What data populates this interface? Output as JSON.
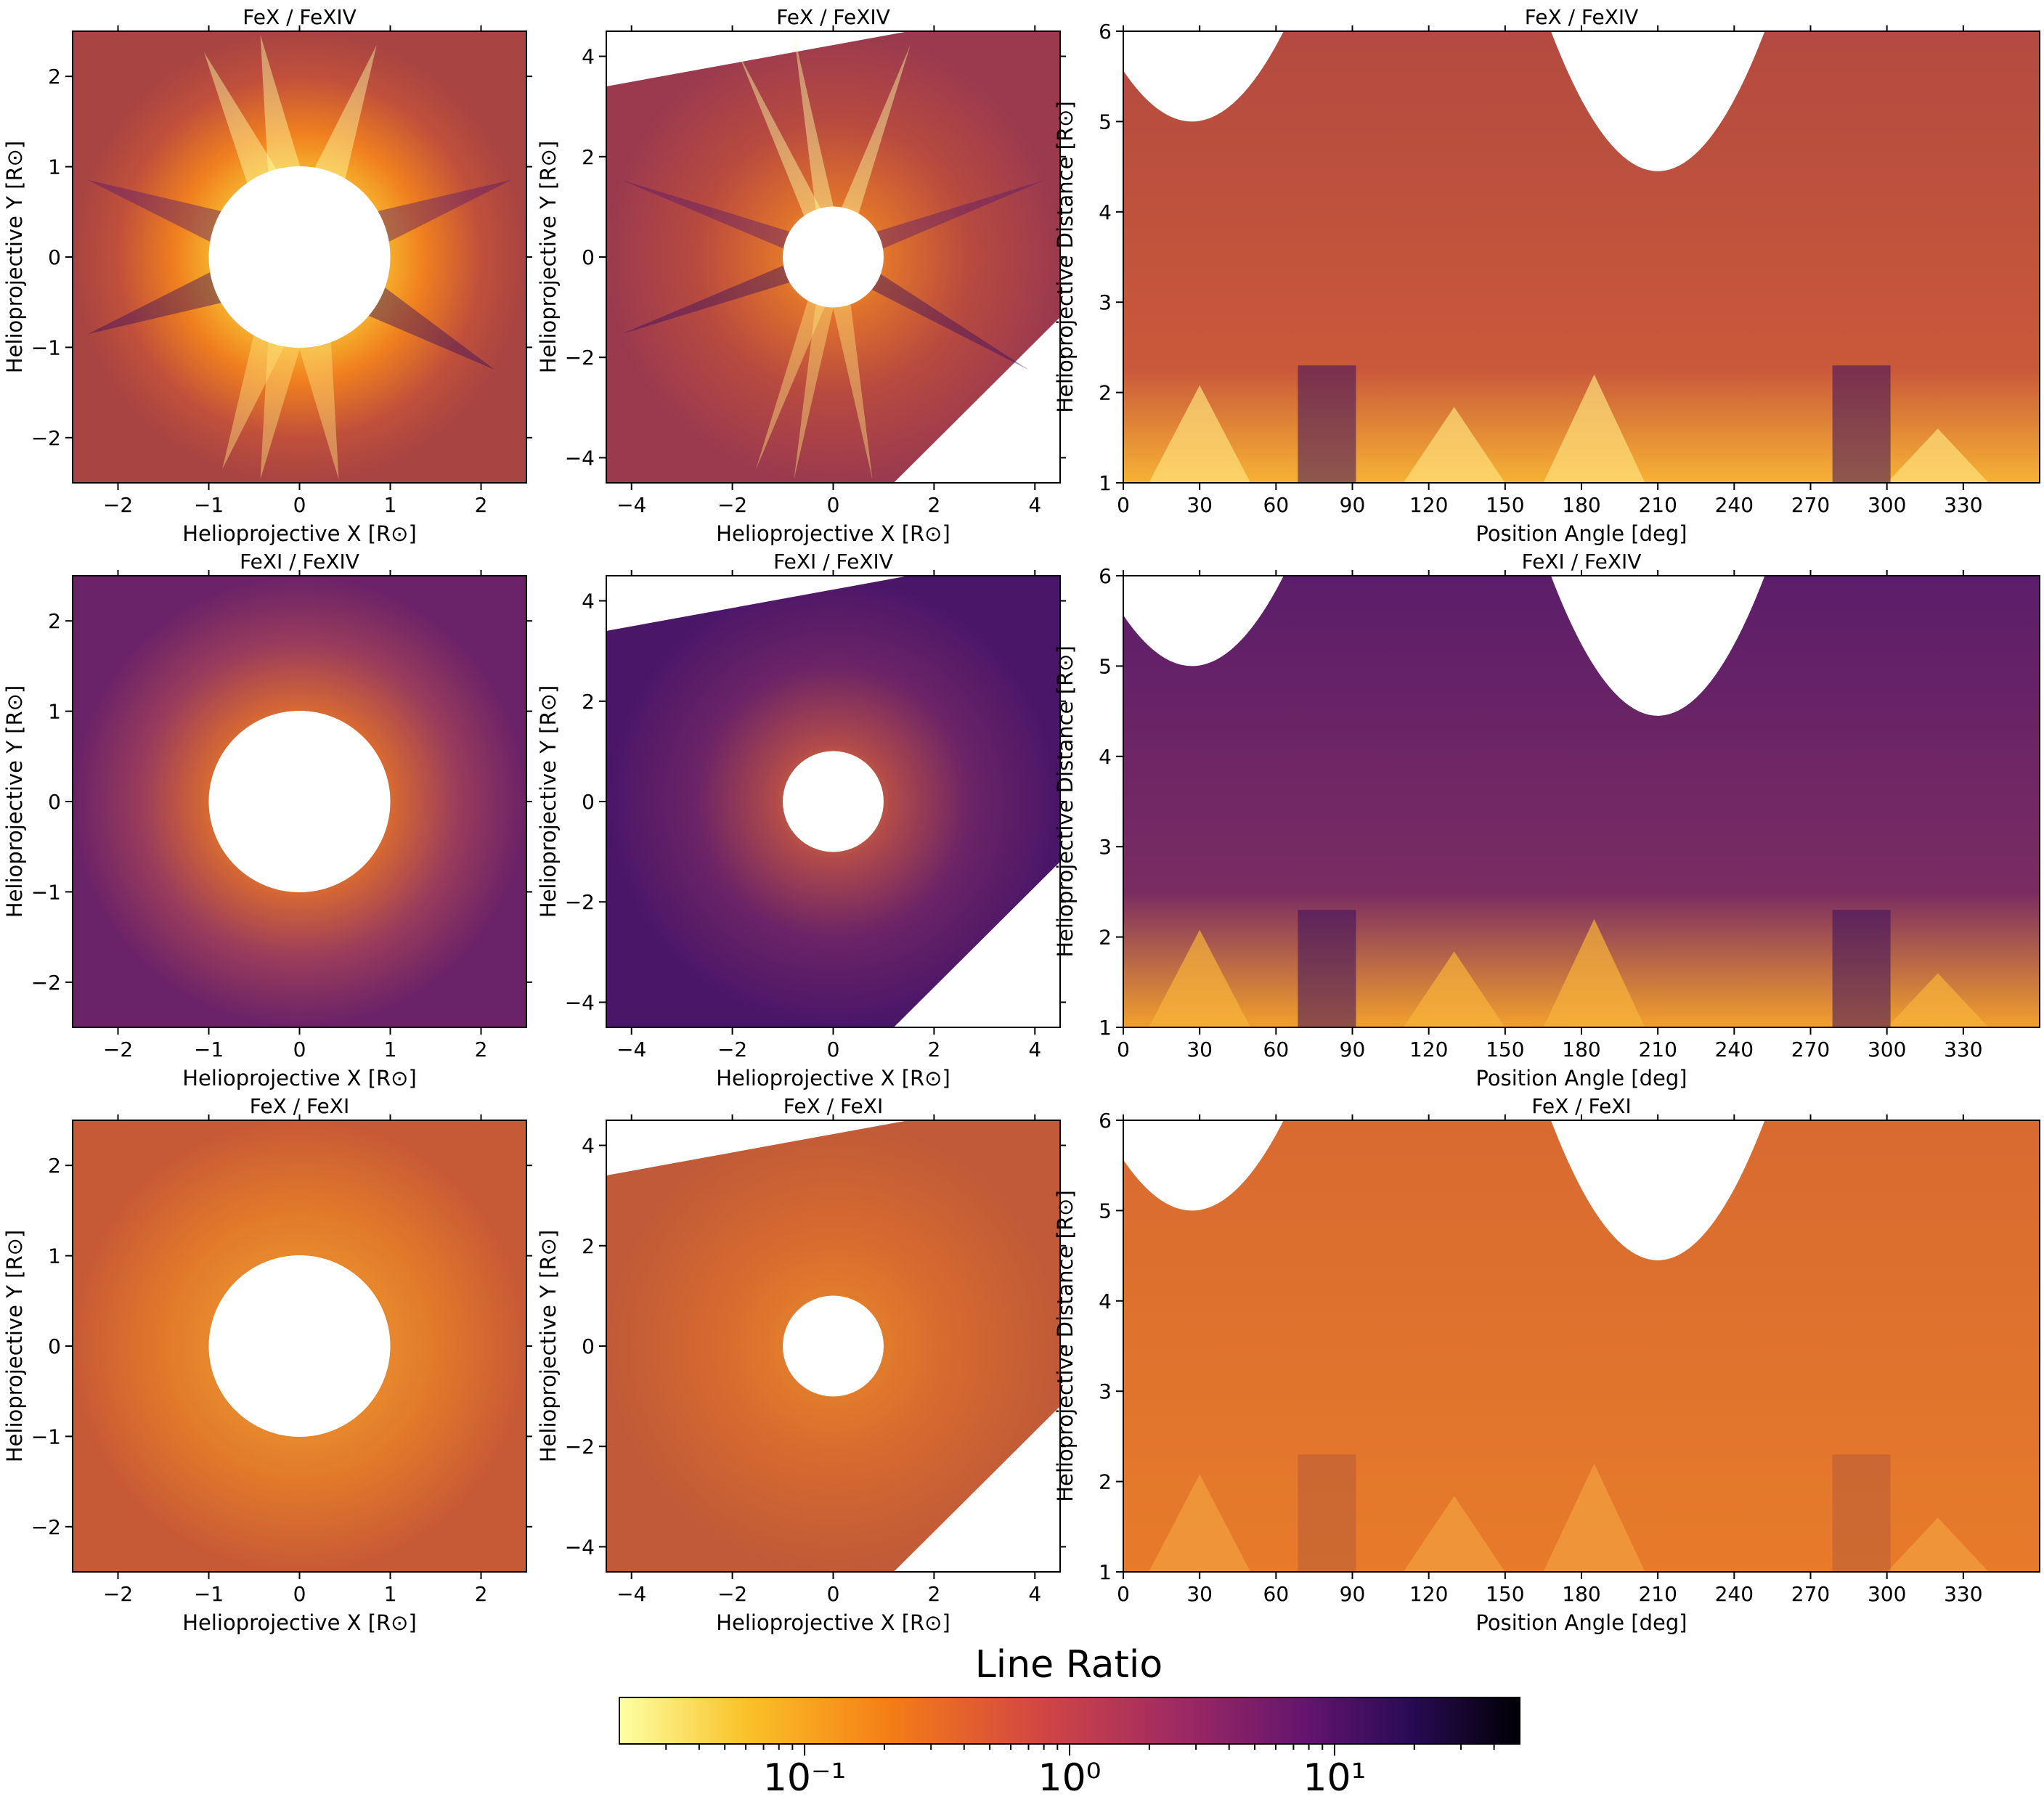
{
  "figure": {
    "colormap": [
      "#fcffa4",
      "#fac228",
      "#f57d15",
      "#d44842",
      "#9f2a63",
      "#65156e",
      "#280b53",
      "#000004"
    ],
    "hole_color": "#ffffff"
  },
  "colorbar": {
    "label": "Line Ratio",
    "scale": "log",
    "range": [
      0.02,
      50
    ],
    "tick_labels": [
      "10⁻¹",
      "10⁰",
      "10¹"
    ],
    "tick_values": [
      0.1,
      1,
      10
    ]
  },
  "chart_data": [
    {
      "type": "heatmap",
      "title": "FeX / FeXIV",
      "xlabel": "Helioprojective X [R⊙]",
      "ylabel": "Helioprojective Y [R⊙]",
      "xlim": [
        -2.5,
        2.5
      ],
      "ylim": [
        -2.5,
        2.5
      ],
      "xticks": [
        -2,
        -1,
        0,
        1,
        2
      ],
      "yticks": [
        -2,
        -1,
        0,
        1,
        2
      ],
      "tick_labels_x": [
        "−2",
        "−1",
        "0",
        "1",
        "2"
      ],
      "tick_labels_y": [
        "−2",
        "−1",
        "0",
        "1",
        "2"
      ],
      "occulter_radius": 1.0,
      "bright_regions": [
        "north-east streamer",
        "south streamer"
      ],
      "dominant_ratio": "0.1 to 1"
    },
    {
      "type": "heatmap",
      "title": "FeX / FeXIV",
      "xlabel": "Helioprojective X [R⊙]",
      "ylabel": "Helioprojective Y [R⊙]",
      "xlim": [
        -4.5,
        4.5
      ],
      "ylim": [
        -4.5,
        4.5
      ],
      "xticks": [
        -4,
        -2,
        0,
        2,
        4
      ],
      "yticks": [
        -4,
        -2,
        0,
        2,
        4
      ],
      "tick_labels_x": [
        "−4",
        "−2",
        "0",
        "2",
        "4"
      ],
      "tick_labels_y": [
        "−4",
        "−2",
        "0",
        "2",
        "4"
      ],
      "occulter_radius": 1.0,
      "dominant_ratio": "about 1"
    },
    {
      "type": "heatmap",
      "title": "FeX / FeXIV",
      "xlabel": "Position Angle [deg]",
      "ylabel": "Helioprojective Distance [R⊙]",
      "xlim": [
        0,
        360
      ],
      "ylim": [
        1,
        6
      ],
      "xticks": [
        0,
        30,
        60,
        90,
        120,
        150,
        180,
        210,
        240,
        270,
        300,
        330
      ],
      "yticks": [
        1,
        2,
        3,
        4,
        5,
        6
      ],
      "tick_labels_x": [
        "0",
        "30",
        "60",
        "90",
        "120",
        "150",
        "180",
        "210",
        "240",
        "270",
        "300",
        "330"
      ],
      "tick_labels_y": [
        "1",
        "2",
        "3",
        "4",
        "5",
        "6"
      ],
      "missing_arcs": [
        {
          "center_angle": 27,
          "min_distance": 5.0
        },
        {
          "center_angle": 210,
          "min_distance": 4.45
        }
      ]
    },
    {
      "type": "heatmap",
      "title": "FeXI / FeXIV",
      "xlabel": "Helioprojective X [R⊙]",
      "ylabel": "Helioprojective Y [R⊙]",
      "xlim": [
        -2.5,
        2.5
      ],
      "ylim": [
        -2.5,
        2.5
      ],
      "xticks": [
        -2,
        -1,
        0,
        1,
        2
      ],
      "yticks": [
        -2,
        -1,
        0,
        1,
        2
      ],
      "tick_labels_x": [
        "−2",
        "−1",
        "0",
        "1",
        "2"
      ],
      "tick_labels_y": [
        "−2",
        "−1",
        "0",
        "1",
        "2"
      ],
      "occulter_radius": 1.0
    },
    {
      "type": "heatmap",
      "title": "FeXI / FeXIV",
      "xlabel": "Helioprojective X [R⊙]",
      "ylabel": "Helioprojective Y [R⊙]",
      "xlim": [
        -4.5,
        4.5
      ],
      "ylim": [
        -4.5,
        4.5
      ],
      "xticks": [
        -4,
        -2,
        0,
        2,
        4
      ],
      "yticks": [
        -4,
        -2,
        0,
        2,
        4
      ],
      "tick_labels_x": [
        "−4",
        "−2",
        "0",
        "2",
        "4"
      ],
      "tick_labels_y": [
        "−4",
        "−2",
        "0",
        "2",
        "4"
      ],
      "occulter_radius": 1.0
    },
    {
      "type": "heatmap",
      "title": "FeXI / FeXIV",
      "xlabel": "Position Angle [deg]",
      "ylabel": "Helioprojective Distance [R⊙]",
      "xlim": [
        0,
        360
      ],
      "ylim": [
        1,
        6
      ],
      "xticks": [
        0,
        30,
        60,
        90,
        120,
        150,
        180,
        210,
        240,
        270,
        300,
        330
      ],
      "yticks": [
        1,
        2,
        3,
        4,
        5,
        6
      ],
      "tick_labels_x": [
        "0",
        "30",
        "60",
        "90",
        "120",
        "150",
        "180",
        "210",
        "240",
        "270",
        "300",
        "330"
      ],
      "tick_labels_y": [
        "1",
        "2",
        "3",
        "4",
        "5",
        "6"
      ],
      "missing_arcs": [
        {
          "center_angle": 27,
          "min_distance": 5.0
        },
        {
          "center_angle": 210,
          "min_distance": 4.45
        }
      ]
    },
    {
      "type": "heatmap",
      "title": "FeX / FeXI",
      "xlabel": "Helioprojective X [R⊙]",
      "ylabel": "Helioprojective Y [R⊙]",
      "xlim": [
        -2.5,
        2.5
      ],
      "ylim": [
        -2.5,
        2.5
      ],
      "xticks": [
        -2,
        -1,
        0,
        1,
        2
      ],
      "yticks": [
        -2,
        -1,
        0,
        1,
        2
      ],
      "tick_labels_x": [
        "−2",
        "−1",
        "0",
        "1",
        "2"
      ],
      "tick_labels_y": [
        "−2",
        "−1",
        "0",
        "1",
        "2"
      ],
      "occulter_radius": 1.0
    },
    {
      "type": "heatmap",
      "title": "FeX / FeXI",
      "xlabel": "Helioprojective X [R⊙]",
      "ylabel": "Helioprojective Y [R⊙]",
      "xlim": [
        -4.5,
        4.5
      ],
      "ylim": [
        -4.5,
        4.5
      ],
      "xticks": [
        -4,
        -2,
        0,
        2,
        4
      ],
      "yticks": [
        -4,
        -2,
        0,
        2,
        4
      ],
      "tick_labels_x": [
        "−4",
        "−2",
        "0",
        "2",
        "4"
      ],
      "tick_labels_y": [
        "−4",
        "−2",
        "0",
        "2",
        "4"
      ],
      "occulter_radius": 1.0
    },
    {
      "type": "heatmap",
      "title": "FeX / FeXI",
      "xlabel": "Position Angle [deg]",
      "ylabel": "Helioprojective Distance [R⊙]",
      "xlim": [
        0,
        360
      ],
      "ylim": [
        1,
        6
      ],
      "xticks": [
        0,
        30,
        60,
        90,
        120,
        150,
        180,
        210,
        240,
        270,
        300,
        330
      ],
      "yticks": [
        1,
        2,
        3,
        4,
        5,
        6
      ],
      "tick_labels_x": [
        "0",
        "30",
        "60",
        "90",
        "120",
        "150",
        "180",
        "210",
        "240",
        "270",
        "300",
        "330"
      ],
      "tick_labels_y": [
        "1",
        "2",
        "3",
        "4",
        "5",
        "6"
      ],
      "missing_arcs": [
        {
          "center_angle": 27,
          "min_distance": 5.0
        },
        {
          "center_angle": 210,
          "min_distance": 4.45
        }
      ]
    }
  ]
}
